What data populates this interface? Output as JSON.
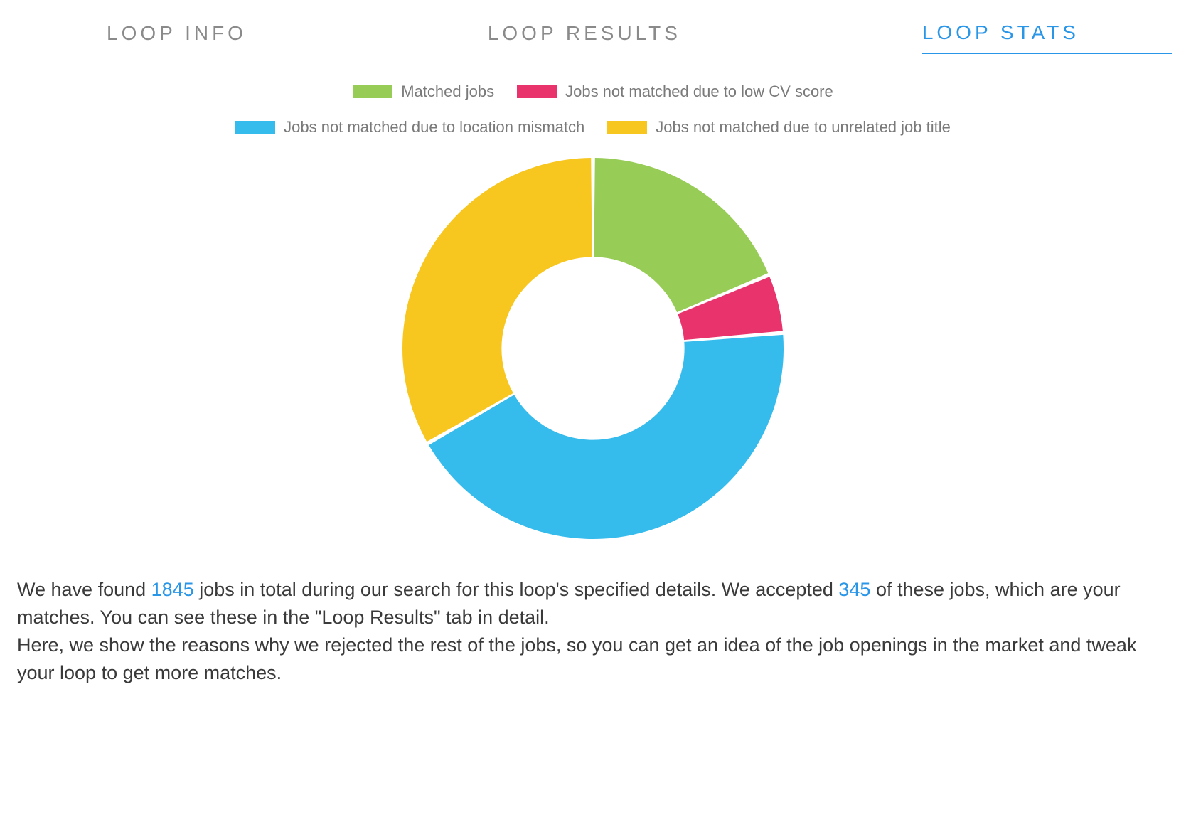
{
  "tabs": {
    "items": [
      {
        "label": "LOOP INFO",
        "active": false
      },
      {
        "label": "LOOP RESULTS",
        "active": false
      },
      {
        "label": "LOOP STATS",
        "active": true
      }
    ],
    "inactive_color": "#8a8a8a",
    "active_color": "#2a96e8",
    "fontsize": 28,
    "letter_spacing": 5
  },
  "chart": {
    "type": "donut",
    "inner_radius_ratio": 0.48,
    "outer_radius": 268,
    "background_color": "#ffffff",
    "slice_gap_deg": 1.2,
    "slices": [
      {
        "label": "Matched jobs",
        "value": 18.7,
        "color": "#97cc56"
      },
      {
        "label": "Jobs not matched due to low CV score",
        "value": 5.0,
        "color": "#e9336c"
      },
      {
        "label": "Jobs not matched due to location mismatch",
        "value": 43.0,
        "color": "#36bbed"
      },
      {
        "label": "Jobs not matched due to unrelated job title",
        "value": 33.3,
        "color": "#f7c61f"
      }
    ],
    "legend": {
      "fontsize": 22,
      "text_color": "#7a7a7a",
      "swatch_width": 56,
      "swatch_height": 18
    }
  },
  "summary": {
    "total_jobs": 1845,
    "accepted_jobs": 345,
    "text_before_total": "We have found ",
    "text_after_total": " jobs in total during our search for this loop's specified details. We accepted ",
    "text_after_accepted": " of these jobs, which are your matches. You can see these in the \"Loop Results\" tab in detail.",
    "line2": "Here, we show the reasons why we rejected the rest of the jobs, so you can get an idea of the job openings in the market and tweak your loop to get more matches.",
    "fontsize": 27,
    "text_color": "#3a3a3a",
    "highlight_color": "#2a96e8"
  }
}
